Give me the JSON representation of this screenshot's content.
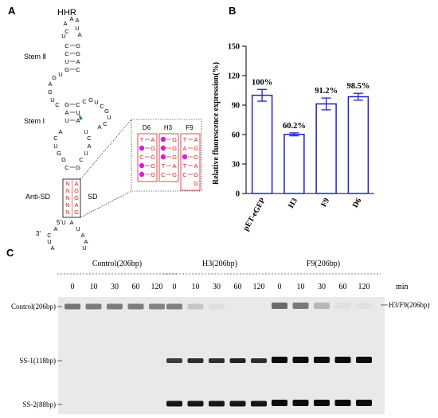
{
  "panel_a": {
    "letter": "A",
    "title": "HHR",
    "stem2_label": "Stem Ⅱ",
    "stem1_label": "Stem Ⅰ",
    "anti_sd_label": "Anti-SD",
    "sd_label": "SD",
    "five_prime": "5'",
    "three_prime": "3'",
    "seq_top_loop": [
      "A",
      "A",
      "A",
      "U",
      "C",
      "A",
      "U"
    ],
    "seq_stem2_left": [
      "C",
      "C",
      "U",
      "G"
    ],
    "seq_stem2_right": [
      "G",
      "G",
      "A",
      "C"
    ],
    "seq_left_loop": [
      "U",
      "G",
      "A",
      "G",
      "U",
      "C"
    ],
    "seq_stem1_left": [
      "G",
      "A",
      "U"
    ],
    "seq_stem1_right": [
      "C",
      "U",
      "A"
    ],
    "seq_right_loop": [
      "C",
      "G",
      "U",
      "C",
      "G",
      "U",
      "C",
      "A"
    ],
    "seq_lower_left": [
      "A",
      "C",
      "U",
      "G",
      "G",
      "C"
    ],
    "seq_lower_right": [
      "U",
      "C",
      "A",
      "U",
      "C",
      "G"
    ],
    "seq_sd_left": [
      "N",
      "N",
      "N",
      "N",
      "N"
    ],
    "seq_sd_right": [
      "A",
      "G",
      "G",
      "A",
      "G"
    ],
    "seq_bottom_left": [
      "U",
      "A",
      "C",
      "U",
      "A"
    ],
    "seq_bottom_right": [
      "A",
      "U",
      "A",
      "A",
      "U"
    ],
    "insets": [
      {
        "name": "D6",
        "left": [
          "T",
          "A",
          "C",
          "C",
          "C"
        ],
        "right": [
          "A",
          "G",
          "G",
          "G",
          "G"
        ],
        "dots": [
          1,
          3,
          4
        ]
      },
      {
        "name": "H3",
        "left": [
          "C",
          "C",
          "C",
          "T",
          "C"
        ],
        "right": [
          "G",
          "G",
          "G",
          "A",
          "G"
        ],
        "dots": [
          0,
          1,
          2
        ]
      },
      {
        "name": "F9",
        "left": [
          "T",
          "A",
          "C",
          "T",
          "C"
        ],
        "right": [
          "A",
          "G",
          "G",
          "A",
          "G",
          "G"
        ],
        "dots": [
          2
        ]
      }
    ]
  },
  "panel_b": {
    "letter": "B",
    "ylabel": "Relative fluorescence expression(%)",
    "bar_color": "#2020d0"
  },
  "chart_data": {
    "type": "bar",
    "categories": [
      "pET-eGFP",
      "H3",
      "F9",
      "D6"
    ],
    "values": [
      100,
      60.2,
      91.2,
      98.5
    ],
    "errors": [
      6,
      1.5,
      6,
      3.5
    ],
    "value_labels": [
      "100%",
      "60.2%",
      "91.2%",
      "98.5%"
    ],
    "ylim": [
      0,
      150
    ],
    "yticks": [
      "0",
      "30",
      "60",
      "90",
      "120",
      "150"
    ],
    "ylabel": "Relative fluorescence expression(%)",
    "xlabel": "",
    "title": ""
  },
  "panel_c": {
    "letter": "C",
    "groups": [
      "Control(206bp)",
      "H3(206bp)",
      "F9(206bp)"
    ],
    "time_points": [
      "0",
      "10",
      "30",
      "60",
      "120"
    ],
    "time_unit": "min",
    "row_labels": [
      "Control(206bp)",
      "SS-1(118bp)",
      "SS-2(88bp)"
    ],
    "right_label": "H3/F9(206bp)",
    "band_intensity": {
      "control_full": [
        0.9,
        0.85,
        0.85,
        0.85,
        0.8
      ],
      "h3_full": [
        0.75,
        0.25,
        0.08,
        0,
        0
      ],
      "h3_ss1": [
        0.75,
        0.8,
        0.8,
        0.85,
        0.8
      ],
      "h3_ss2": [
        0.9,
        0.9,
        0.9,
        0.9,
        0.9
      ],
      "f9_full": [
        0.9,
        0.8,
        0.35,
        0.06,
        0.05
      ],
      "f9_ss1": [
        0.95,
        0.95,
        0.95,
        0.95,
        0.95
      ],
      "f9_ss2": [
        0.95,
        0.95,
        0.95,
        0.95,
        0.95
      ]
    }
  }
}
